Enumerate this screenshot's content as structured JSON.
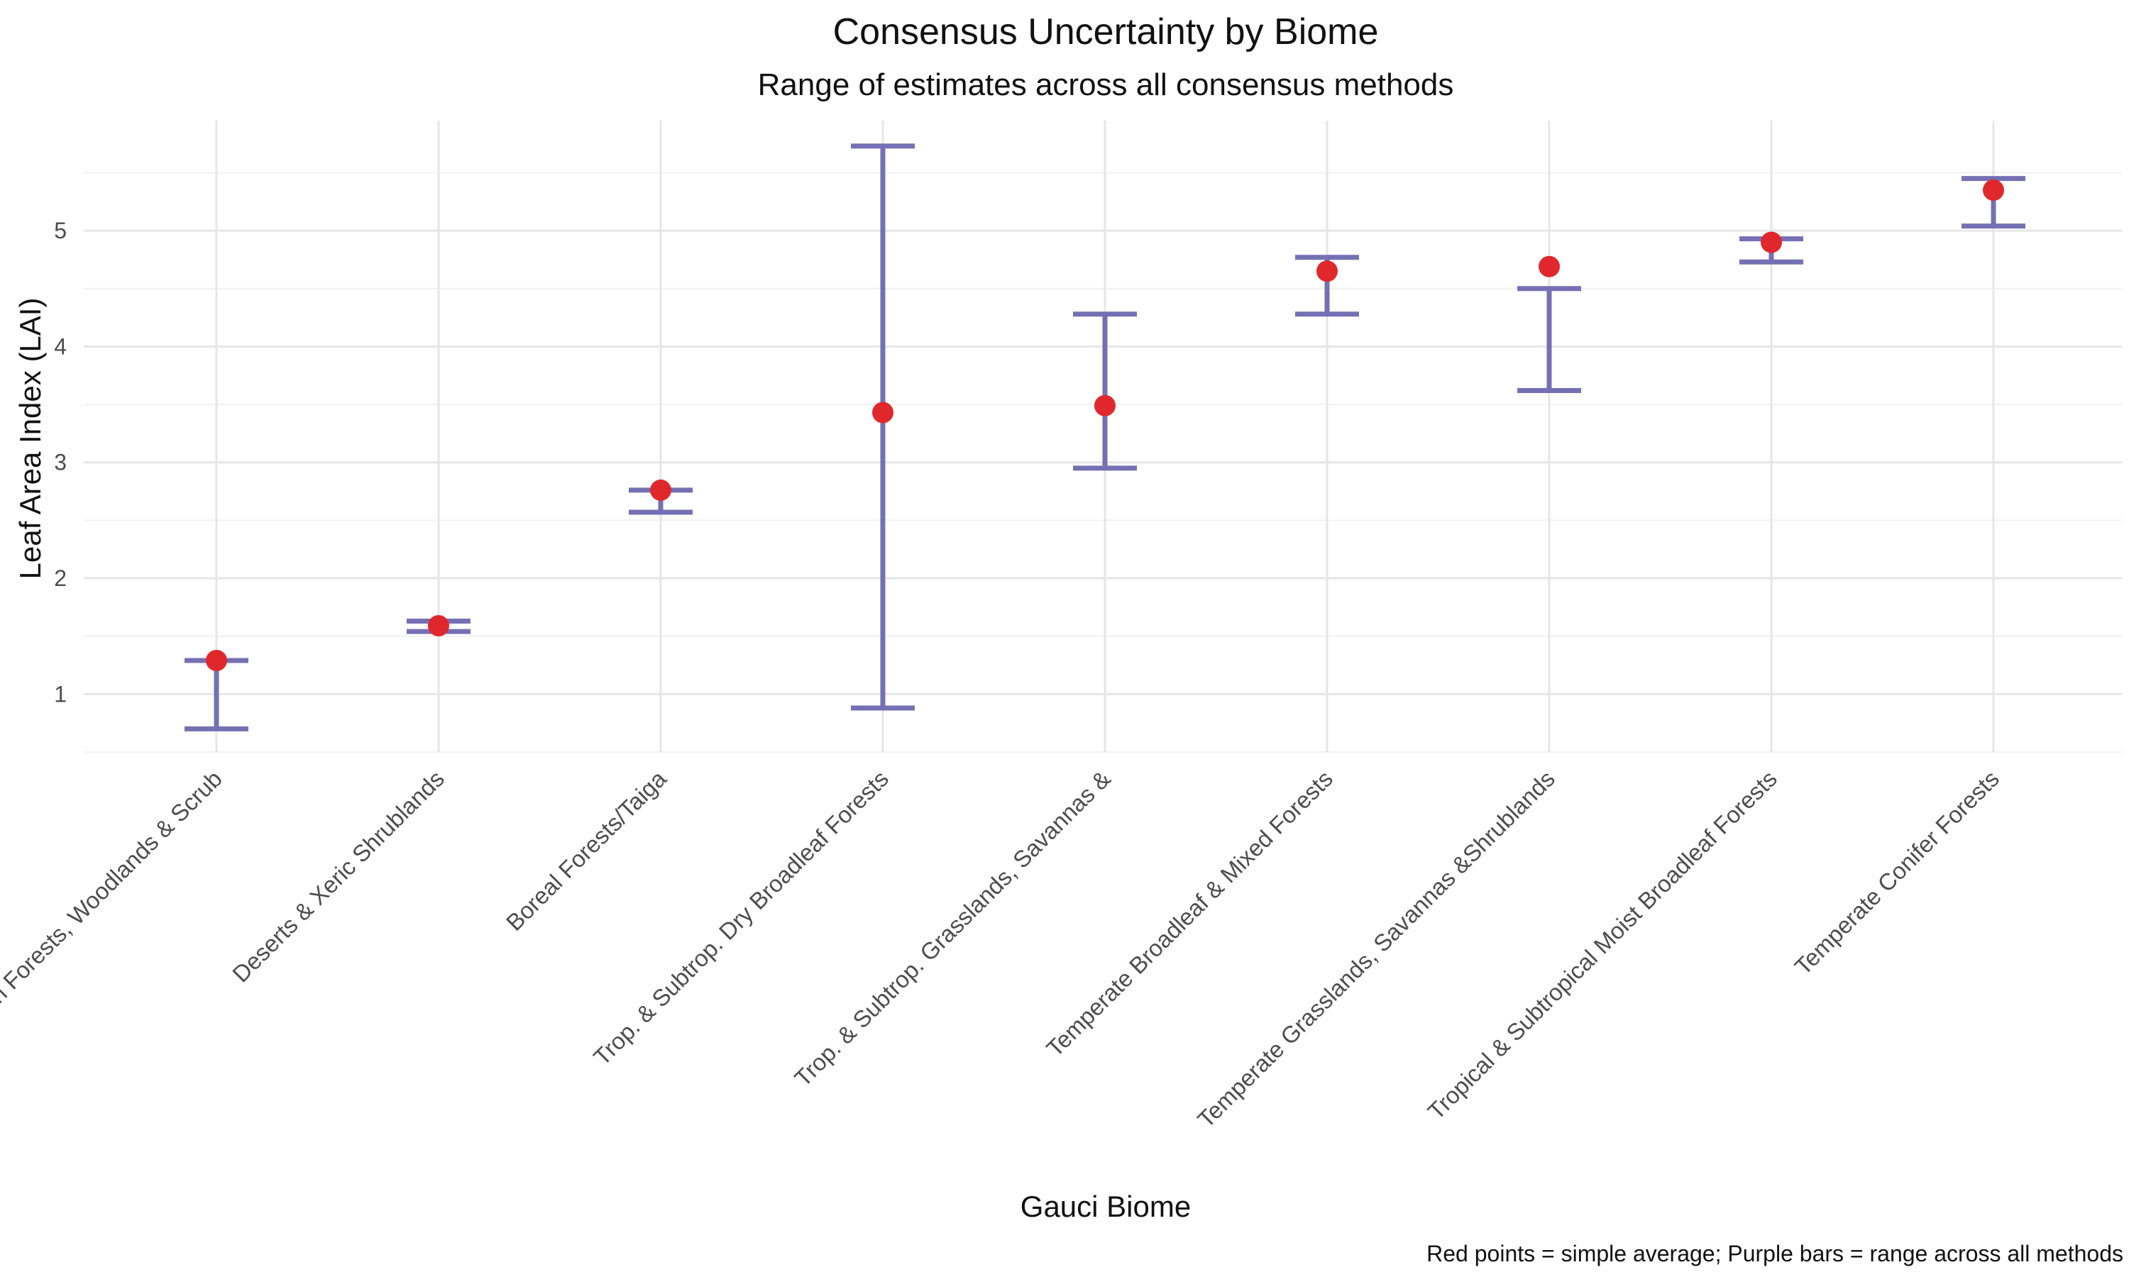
{
  "chart_data": {
    "type": "errorbar",
    "title": "Consensus Uncertainty by Biome",
    "subtitle": "Range of estimates across all consensus methods",
    "xlabel": "Gauci Biome",
    "ylabel": "Leaf Area Index (LAI)",
    "caption": "Red points = simple average; Purple bars = range across all methods",
    "ylim": [
      0.5,
      5.95
    ],
    "y_ticks": [
      1,
      2,
      3,
      4,
      5
    ],
    "grid": true,
    "categories": [
      "Mediterranean Forests, Woodlands & Scrub",
      "Deserts & Xeric Shrublands",
      "Boreal Forests/Taiga",
      "Trop. & Subtrop. Dry Broadleaf Forests",
      "Trop. & Subtrop. Grasslands, Savannas &",
      "Temperate Broadleaf & Mixed Forests",
      "Temperate Grasslands, Savannas &Shrublands",
      "Tropical & Subtropical Moist Broadleaf Forests",
      "Temperate Conifer Forests"
    ],
    "series": [
      {
        "name": "simple average",
        "type": "point",
        "values": [
          1.29,
          1.59,
          2.76,
          3.43,
          3.49,
          4.65,
          4.69,
          4.9,
          5.35
        ]
      },
      {
        "name": "range across all methods",
        "type": "errorbar",
        "lower": [
          0.7,
          1.54,
          2.57,
          0.88,
          2.95,
          4.28,
          3.62,
          4.73,
          5.04
        ],
        "upper": [
          1.29,
          1.63,
          2.76,
          5.73,
          4.28,
          4.77,
          4.5,
          4.93,
          5.45
        ]
      }
    ],
    "colors": {
      "point": "#e0282c",
      "bar": "#7570b3",
      "grid": "#e6e6e6"
    }
  }
}
